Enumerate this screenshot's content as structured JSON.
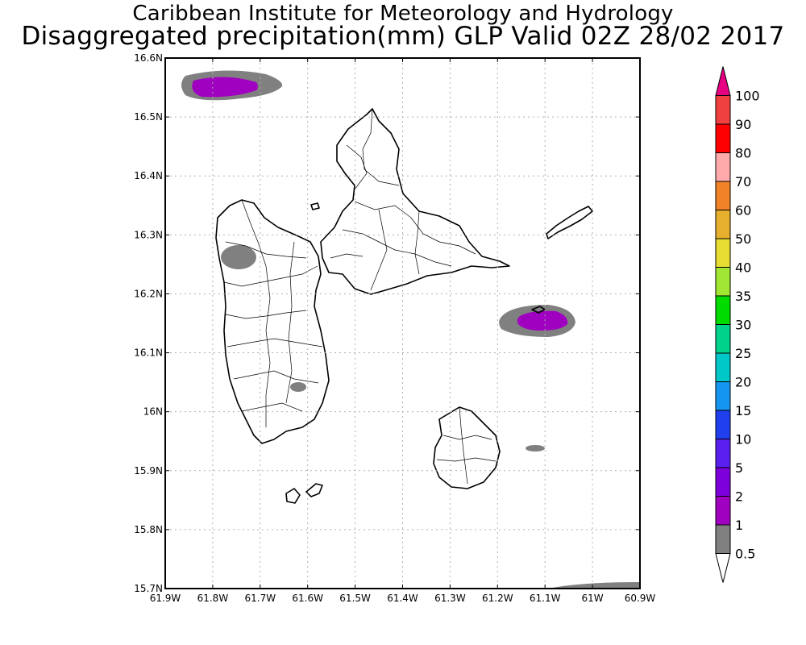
{
  "title": {
    "line1": "Caribbean Institute for Meteorology and Hydrology",
    "line2": "Disaggregated precipitation(mm) GLP Valid 02Z 28/02 2017"
  },
  "map": {
    "lon_range": [
      -61.9,
      -60.9
    ],
    "lat_range": [
      15.7,
      16.6
    ],
    "grid": true,
    "lon_ticks": [
      {
        "value": -61.9,
        "label": "61.9W"
      },
      {
        "value": -61.8,
        "label": "61.8W"
      },
      {
        "value": -61.7,
        "label": "61.7W"
      },
      {
        "value": -61.6,
        "label": "61.6W"
      },
      {
        "value": -61.5,
        "label": "61.5W"
      },
      {
        "value": -61.4,
        "label": "61.4W"
      },
      {
        "value": -61.3,
        "label": "61.3W"
      },
      {
        "value": -61.2,
        "label": "61.2W"
      },
      {
        "value": -61.1,
        "label": "61.1W"
      },
      {
        "value": -61.0,
        "label": "61W"
      },
      {
        "value": -60.9,
        "label": "60.9W"
      }
    ],
    "lat_ticks": [
      {
        "value": 16.6,
        "label": "16.6N"
      },
      {
        "value": 16.5,
        "label": "16.5N"
      },
      {
        "value": 16.4,
        "label": "16.4N"
      },
      {
        "value": 16.3,
        "label": "16.3N"
      },
      {
        "value": 16.2,
        "label": "16.2N"
      },
      {
        "value": 16.1,
        "label": "16.1N"
      },
      {
        "value": 16.0,
        "label": "16N"
      },
      {
        "value": 15.9,
        "label": "15.9N"
      },
      {
        "value": 15.8,
        "label": "15.8N"
      },
      {
        "value": 15.7,
        "label": "15.7N"
      }
    ]
  },
  "colorbar": {
    "levels": [
      "0.5",
      "1",
      "2",
      "5",
      "10",
      "15",
      "20",
      "25",
      "30",
      "35",
      "40",
      "50",
      "60",
      "70",
      "80",
      "90",
      "100"
    ],
    "colors": [
      "#808080",
      "#a000c0",
      "#7d00dc",
      "#5a20f0",
      "#2040f0",
      "#1496f0",
      "#00c8c8",
      "#00d28c",
      "#00dc00",
      "#a0e632",
      "#e6dc32",
      "#e6af2d",
      "#f08228",
      "#ffaaaa",
      "#ff0000",
      "#f04040",
      "#e60082"
    ],
    "under_color": "#ffffff",
    "over_color": "#e60082"
  }
}
